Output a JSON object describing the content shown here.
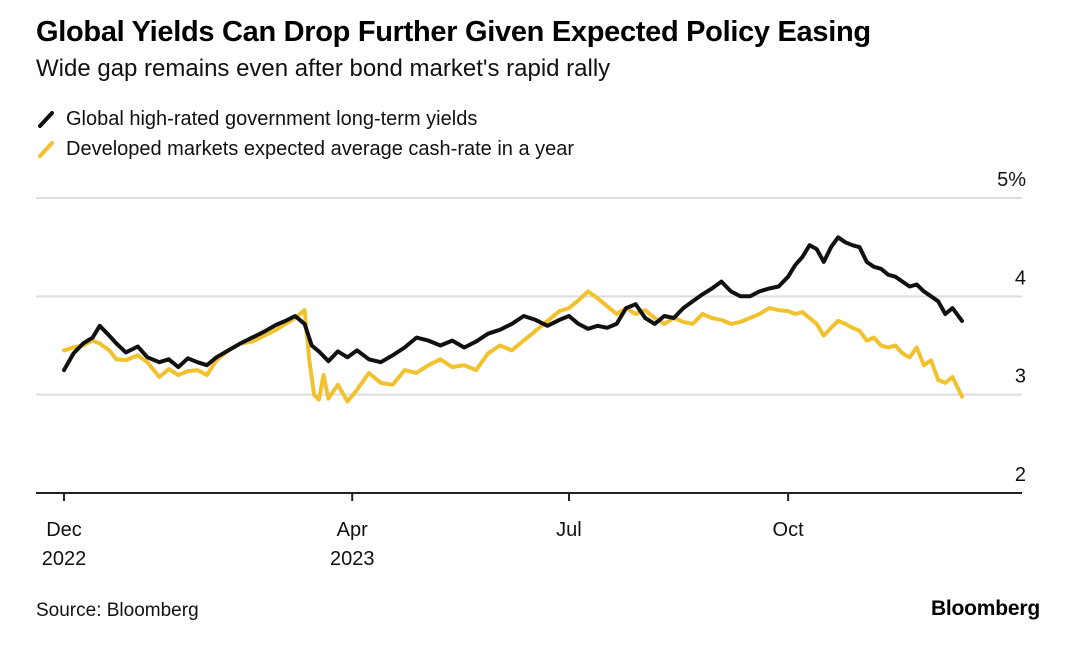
{
  "title": "Global Yields Can Drop Further Given Expected Policy Easing",
  "subtitle": "Wide gap remains even after bond market's rapid rally",
  "source": "Source: Bloomberg",
  "brand": "Bloomberg",
  "colors": {
    "series_black": "#111111",
    "series_yellow": "#f2c12e",
    "grid": "#dddddd",
    "axis": "#222222"
  },
  "chart_data": {
    "type": "line",
    "title": "Global Yields Can Drop Further Given Expected Policy Easing",
    "subtitle": "Wide gap remains even after bond market's rapid rally",
    "xlabel": "",
    "ylabel": "",
    "ylim": [
      2,
      5
    ],
    "y_ticks": [
      {
        "value": 5,
        "label": "5%"
      },
      {
        "value": 4,
        "label": "4"
      },
      {
        "value": 3,
        "label": "3"
      },
      {
        "value": 2,
        "label": "2"
      }
    ],
    "x_ticks": [
      {
        "date": "2022-12-01",
        "label": "Dec",
        "sublabel": "2022"
      },
      {
        "date": "2023-04-01",
        "label": "Apr",
        "sublabel": "2023"
      },
      {
        "date": "2023-07-01",
        "label": "Jul",
        "sublabel": ""
      },
      {
        "date": "2023-10-01",
        "label": "Oct",
        "sublabel": ""
      }
    ],
    "grid": true,
    "legend_position": "top-left",
    "series": [
      {
        "name": "Global high-rated government long-term yields",
        "color": "#111111",
        "points": [
          [
            "2022-12-01",
            3.25
          ],
          [
            "2022-12-05",
            3.42
          ],
          [
            "2022-12-09",
            3.52
          ],
          [
            "2022-12-13",
            3.58
          ],
          [
            "2022-12-16",
            3.7
          ],
          [
            "2022-12-20",
            3.6
          ],
          [
            "2022-12-23",
            3.52
          ],
          [
            "2022-12-27",
            3.43
          ],
          [
            "2023-01-01",
            3.49
          ],
          [
            "2023-01-05",
            3.38
          ],
          [
            "2023-01-10",
            3.33
          ],
          [
            "2023-01-14",
            3.36
          ],
          [
            "2023-01-18",
            3.28
          ],
          [
            "2023-01-22",
            3.37
          ],
          [
            "2023-01-26",
            3.33
          ],
          [
            "2023-01-30",
            3.3
          ],
          [
            "2023-02-03",
            3.38
          ],
          [
            "2023-02-08",
            3.45
          ],
          [
            "2023-02-13",
            3.52
          ],
          [
            "2023-02-18",
            3.58
          ],
          [
            "2023-02-23",
            3.64
          ],
          [
            "2023-02-28",
            3.71
          ],
          [
            "2023-03-04",
            3.75
          ],
          [
            "2023-03-08",
            3.8
          ],
          [
            "2023-03-12",
            3.72
          ],
          [
            "2023-03-15",
            3.5
          ],
          [
            "2023-03-18",
            3.44
          ],
          [
            "2023-03-22",
            3.34
          ],
          [
            "2023-03-26",
            3.44
          ],
          [
            "2023-03-30",
            3.38
          ],
          [
            "2023-04-03",
            3.45
          ],
          [
            "2023-04-08",
            3.36
          ],
          [
            "2023-04-13",
            3.33
          ],
          [
            "2023-04-18",
            3.4
          ],
          [
            "2023-04-23",
            3.48
          ],
          [
            "2023-04-28",
            3.58
          ],
          [
            "2023-05-03",
            3.55
          ],
          [
            "2023-05-08",
            3.5
          ],
          [
            "2023-05-13",
            3.55
          ],
          [
            "2023-05-18",
            3.48
          ],
          [
            "2023-05-23",
            3.54
          ],
          [
            "2023-05-28",
            3.62
          ],
          [
            "2023-06-02",
            3.66
          ],
          [
            "2023-06-07",
            3.72
          ],
          [
            "2023-06-12",
            3.8
          ],
          [
            "2023-06-17",
            3.76
          ],
          [
            "2023-06-22",
            3.7
          ],
          [
            "2023-06-27",
            3.76
          ],
          [
            "2023-07-01",
            3.8
          ],
          [
            "2023-07-05",
            3.72
          ],
          [
            "2023-07-09",
            3.67
          ],
          [
            "2023-07-13",
            3.7
          ],
          [
            "2023-07-17",
            3.68
          ],
          [
            "2023-07-21",
            3.72
          ],
          [
            "2023-07-25",
            3.88
          ],
          [
            "2023-07-29",
            3.92
          ],
          [
            "2023-08-02",
            3.78
          ],
          [
            "2023-08-06",
            3.72
          ],
          [
            "2023-08-10",
            3.8
          ],
          [
            "2023-08-14",
            3.78
          ],
          [
            "2023-08-18",
            3.88
          ],
          [
            "2023-08-22",
            3.95
          ],
          [
            "2023-08-26",
            4.02
          ],
          [
            "2023-08-30",
            4.08
          ],
          [
            "2023-09-03",
            4.15
          ],
          [
            "2023-09-07",
            4.05
          ],
          [
            "2023-09-11",
            4.0
          ],
          [
            "2023-09-15",
            4.0
          ],
          [
            "2023-09-19",
            4.05
          ],
          [
            "2023-09-23",
            4.08
          ],
          [
            "2023-09-27",
            4.1
          ],
          [
            "2023-10-01",
            4.2
          ],
          [
            "2023-10-04",
            4.32
          ],
          [
            "2023-10-07",
            4.4
          ],
          [
            "2023-10-10",
            4.52
          ],
          [
            "2023-10-13",
            4.48
          ],
          [
            "2023-10-16",
            4.35
          ],
          [
            "2023-10-19",
            4.5
          ],
          [
            "2023-10-22",
            4.6
          ],
          [
            "2023-10-25",
            4.55
          ],
          [
            "2023-10-28",
            4.52
          ],
          [
            "2023-10-31",
            4.5
          ],
          [
            "2023-11-03",
            4.35
          ],
          [
            "2023-11-06",
            4.3
          ],
          [
            "2023-11-09",
            4.28
          ],
          [
            "2023-11-12",
            4.22
          ],
          [
            "2023-11-15",
            4.2
          ],
          [
            "2023-11-18",
            4.15
          ],
          [
            "2023-11-21",
            4.1
          ],
          [
            "2023-11-24",
            4.12
          ],
          [
            "2023-11-27",
            4.05
          ],
          [
            "2023-11-30",
            4.0
          ],
          [
            "2023-12-03",
            3.95
          ],
          [
            "2023-12-06",
            3.82
          ],
          [
            "2023-12-09",
            3.88
          ],
          [
            "2023-12-13",
            3.75
          ]
        ]
      },
      {
        "name": "Developed markets expected average cash-rate in a year",
        "color": "#f2c12e",
        "points": [
          [
            "2022-12-01",
            3.45
          ],
          [
            "2022-12-05",
            3.48
          ],
          [
            "2022-12-09",
            3.5
          ],
          [
            "2022-12-13",
            3.55
          ],
          [
            "2022-12-16",
            3.52
          ],
          [
            "2022-12-20",
            3.45
          ],
          [
            "2022-12-23",
            3.36
          ],
          [
            "2022-12-27",
            3.35
          ],
          [
            "2023-01-01",
            3.4
          ],
          [
            "2023-01-05",
            3.33
          ],
          [
            "2023-01-10",
            3.18
          ],
          [
            "2023-01-14",
            3.26
          ],
          [
            "2023-01-18",
            3.2
          ],
          [
            "2023-01-22",
            3.24
          ],
          [
            "2023-01-26",
            3.25
          ],
          [
            "2023-01-30",
            3.2
          ],
          [
            "2023-02-03",
            3.35
          ],
          [
            "2023-02-08",
            3.45
          ],
          [
            "2023-02-13",
            3.52
          ],
          [
            "2023-02-18",
            3.54
          ],
          [
            "2023-02-23",
            3.6
          ],
          [
            "2023-02-28",
            3.66
          ],
          [
            "2023-03-04",
            3.72
          ],
          [
            "2023-03-08",
            3.78
          ],
          [
            "2023-03-12",
            3.86
          ],
          [
            "2023-03-14",
            3.35
          ],
          [
            "2023-03-16",
            3.0
          ],
          [
            "2023-03-18",
            2.95
          ],
          [
            "2023-03-20",
            3.2
          ],
          [
            "2023-03-22",
            2.96
          ],
          [
            "2023-03-26",
            3.1
          ],
          [
            "2023-03-30",
            2.93
          ],
          [
            "2023-04-03",
            3.05
          ],
          [
            "2023-04-08",
            3.22
          ],
          [
            "2023-04-13",
            3.12
          ],
          [
            "2023-04-18",
            3.1
          ],
          [
            "2023-04-23",
            3.25
          ],
          [
            "2023-04-28",
            3.22
          ],
          [
            "2023-05-03",
            3.3
          ],
          [
            "2023-05-08",
            3.36
          ],
          [
            "2023-05-13",
            3.28
          ],
          [
            "2023-05-18",
            3.3
          ],
          [
            "2023-05-23",
            3.25
          ],
          [
            "2023-05-28",
            3.42
          ],
          [
            "2023-06-02",
            3.5
          ],
          [
            "2023-06-07",
            3.45
          ],
          [
            "2023-06-12",
            3.55
          ],
          [
            "2023-06-17",
            3.65
          ],
          [
            "2023-06-22",
            3.75
          ],
          [
            "2023-06-27",
            3.85
          ],
          [
            "2023-07-01",
            3.88
          ],
          [
            "2023-07-05",
            3.96
          ],
          [
            "2023-07-09",
            4.05
          ],
          [
            "2023-07-13",
            3.98
          ],
          [
            "2023-07-17",
            3.9
          ],
          [
            "2023-07-21",
            3.82
          ],
          [
            "2023-07-25",
            3.88
          ],
          [
            "2023-07-29",
            3.82
          ],
          [
            "2023-08-02",
            3.86
          ],
          [
            "2023-08-06",
            3.78
          ],
          [
            "2023-08-10",
            3.72
          ],
          [
            "2023-08-14",
            3.78
          ],
          [
            "2023-08-18",
            3.74
          ],
          [
            "2023-08-22",
            3.72
          ],
          [
            "2023-08-26",
            3.82
          ],
          [
            "2023-08-30",
            3.78
          ],
          [
            "2023-09-03",
            3.76
          ],
          [
            "2023-09-07",
            3.72
          ],
          [
            "2023-09-11",
            3.74
          ],
          [
            "2023-09-15",
            3.78
          ],
          [
            "2023-09-19",
            3.82
          ],
          [
            "2023-09-23",
            3.88
          ],
          [
            "2023-09-27",
            3.86
          ],
          [
            "2023-10-01",
            3.85
          ],
          [
            "2023-10-04",
            3.82
          ],
          [
            "2023-10-07",
            3.84
          ],
          [
            "2023-10-10",
            3.78
          ],
          [
            "2023-10-13",
            3.72
          ],
          [
            "2023-10-16",
            3.6
          ],
          [
            "2023-10-19",
            3.68
          ],
          [
            "2023-10-22",
            3.75
          ],
          [
            "2023-10-25",
            3.72
          ],
          [
            "2023-10-28",
            3.68
          ],
          [
            "2023-10-31",
            3.65
          ],
          [
            "2023-11-03",
            3.55
          ],
          [
            "2023-11-06",
            3.58
          ],
          [
            "2023-11-09",
            3.5
          ],
          [
            "2023-11-12",
            3.48
          ],
          [
            "2023-11-15",
            3.5
          ],
          [
            "2023-11-18",
            3.42
          ],
          [
            "2023-11-21",
            3.38
          ],
          [
            "2023-11-24",
            3.48
          ],
          [
            "2023-11-27",
            3.3
          ],
          [
            "2023-11-30",
            3.35
          ],
          [
            "2023-12-03",
            3.15
          ],
          [
            "2023-12-06",
            3.12
          ],
          [
            "2023-12-09",
            3.18
          ],
          [
            "2023-12-13",
            2.98
          ]
        ]
      }
    ]
  }
}
